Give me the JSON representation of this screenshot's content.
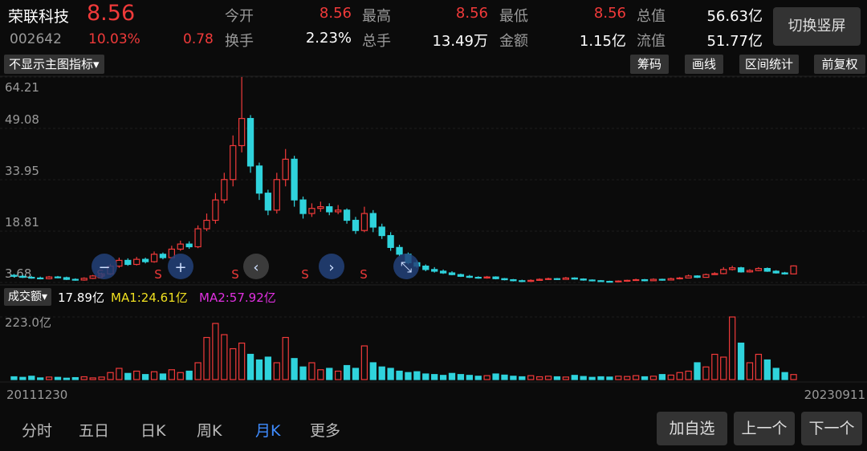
{
  "header": {
    "name": "荣联科技",
    "price": "8.56",
    "code": "002642",
    "change_pct": "10.03%",
    "change": "0.78",
    "stats": [
      {
        "label": "今开",
        "value": "8.56"
      },
      {
        "label": "最高",
        "value": "8.56"
      },
      {
        "label": "最低",
        "value": "8.56"
      },
      {
        "label": "总值",
        "value": "56.63亿"
      },
      {
        "label": "换手",
        "value": "2.23%"
      },
      {
        "label": "总手",
        "value": "13.49万"
      },
      {
        "label": "金额",
        "value": "1.15亿"
      },
      {
        "label": "流值",
        "value": "51.77亿"
      }
    ],
    "rotate_button": "切换竖屏"
  },
  "toolbar": {
    "indicator": "不显示主图指标",
    "buttons": [
      "筹码",
      "画线",
      "区间统计",
      "前复权"
    ]
  },
  "chart_data": {
    "type": "candlestick",
    "open": [
      5.8,
      5.5,
      5.2,
      5.0,
      4.8,
      5.3,
      5.1,
      4.6,
      4.4,
      4.9,
      5.6,
      6.2,
      8.5,
      10.2,
      9.0,
      10.5,
      9.8,
      12.0,
      11.0,
      13.5,
      15.0,
      14.2,
      19.5,
      22.0,
      28.0,
      34.0,
      44.0,
      52.0,
      38.0,
      30.0,
      25.0,
      34.0,
      40.0,
      28.0,
      24.0,
      25.5,
      26.0,
      24.5,
      25.0,
      22.0,
      19.0,
      24.0,
      20.0,
      17.5,
      14.0,
      12.0,
      9.5,
      8.5,
      7.5,
      7.0,
      6.5,
      6.0,
      5.5,
      5.2,
      5.0,
      5.3,
      4.8,
      4.5,
      4.2,
      4.0,
      4.3,
      4.6,
      4.8,
      4.6,
      5.0,
      4.7,
      4.4,
      4.2,
      4.0,
      3.9,
      4.1,
      4.3,
      4.5,
      4.2,
      4.6,
      4.4,
      4.8,
      5.0,
      5.6,
      5.2,
      6.0,
      6.3,
      7.5,
      8.0,
      6.8,
      7.2,
      7.8,
      7.0,
      6.5,
      6.2
    ],
    "high": [
      6.2,
      5.9,
      5.6,
      5.4,
      5.6,
      5.6,
      5.4,
      4.9,
      5.2,
      5.9,
      6.6,
      9.2,
      11.0,
      10.8,
      11.2,
      11.0,
      12.8,
      12.5,
      14.5,
      16.0,
      15.8,
      20.5,
      24.0,
      30.0,
      36.0,
      47.0,
      64.21,
      53.0,
      39.0,
      31.0,
      36.0,
      43.0,
      41.0,
      29.0,
      27.0,
      27.5,
      27.0,
      26.5,
      25.5,
      23.0,
      26.0,
      25.0,
      21.0,
      18.5,
      14.8,
      12.5,
      10.2,
      9.0,
      8.2,
      7.5,
      7.0,
      6.3,
      5.9,
      5.5,
      5.6,
      5.5,
      5.0,
      4.7,
      4.5,
      4.6,
      4.9,
      5.1,
      5.0,
      5.3,
      5.2,
      4.9,
      4.6,
      4.4,
      4.2,
      4.3,
      4.5,
      4.8,
      4.7,
      4.9,
      4.8,
      5.1,
      5.3,
      6.0,
      5.8,
      6.3,
      6.7,
      8.2,
      8.6,
      8.3,
      7.6,
      8.2,
      8.1,
      7.3,
      6.8,
      8.7
    ],
    "low": [
      5.2,
      5.0,
      4.8,
      4.6,
      4.6,
      4.9,
      4.4,
      4.2,
      4.2,
      4.7,
      5.3,
      5.9,
      8.0,
      8.6,
      8.7,
      9.3,
      9.5,
      10.5,
      10.8,
      13.0,
      13.6,
      13.8,
      18.8,
      21.0,
      27.0,
      32.0,
      42.0,
      36.0,
      28.0,
      23.5,
      24.0,
      32.0,
      26.0,
      22.5,
      23.0,
      24.5,
      23.5,
      23.8,
      21.0,
      18.0,
      18.5,
      18.5,
      16.5,
      13.0,
      11.5,
      9.0,
      8.0,
      7.0,
      6.6,
      6.2,
      5.8,
      5.3,
      5.0,
      4.8,
      4.8,
      4.6,
      4.3,
      4.0,
      3.8,
      3.9,
      4.2,
      4.4,
      4.4,
      4.5,
      4.5,
      4.2,
      4.0,
      3.85,
      3.75,
      3.8,
      4.0,
      4.2,
      4.0,
      4.1,
      4.2,
      4.3,
      4.6,
      4.9,
      5.0,
      5.1,
      5.9,
      6.1,
      7.2,
      6.6,
      6.6,
      7.0,
      6.8,
      6.3,
      6.0,
      6.1
    ],
    "close": [
      5.5,
      5.2,
      5.0,
      4.8,
      5.3,
      5.1,
      4.6,
      4.4,
      4.9,
      5.6,
      6.2,
      8.5,
      10.2,
      9.0,
      10.5,
      9.8,
      12.0,
      11.0,
      13.5,
      15.0,
      14.2,
      19.5,
      22.0,
      28.0,
      34.0,
      44.0,
      52.0,
      38.0,
      30.0,
      25.0,
      34.0,
      40.0,
      28.0,
      24.0,
      25.5,
      26.0,
      24.5,
      25.0,
      22.0,
      19.0,
      24.0,
      20.0,
      17.5,
      14.0,
      12.0,
      9.5,
      8.5,
      7.5,
      7.0,
      6.5,
      6.0,
      5.5,
      5.2,
      5.0,
      5.3,
      4.8,
      4.5,
      4.2,
      4.0,
      4.3,
      4.6,
      4.8,
      4.6,
      5.0,
      4.7,
      4.4,
      4.2,
      4.0,
      3.9,
      4.1,
      4.3,
      4.5,
      4.2,
      4.6,
      4.4,
      4.8,
      5.0,
      5.6,
      5.2,
      6.0,
      6.3,
      7.5,
      8.0,
      6.8,
      7.2,
      7.8,
      7.0,
      6.5,
      6.2,
      8.56
    ],
    "volume": [
      10,
      8,
      12,
      6,
      9,
      8,
      5,
      7,
      10,
      6,
      9,
      25,
      40,
      22,
      30,
      18,
      28,
      20,
      35,
      25,
      30,
      60,
      150,
      200,
      160,
      110,
      130,
      90,
      70,
      80,
      60,
      150,
      75,
      45,
      60,
      35,
      40,
      30,
      50,
      40,
      120,
      60,
      45,
      40,
      30,
      25,
      28,
      20,
      18,
      15,
      22,
      18,
      15,
      12,
      14,
      20,
      16,
      12,
      10,
      14,
      10,
      12,
      10,
      9,
      15,
      11,
      8,
      10,
      9,
      12,
      11,
      14,
      10,
      12,
      18,
      16,
      25,
      30,
      60,
      45,
      90,
      80,
      223,
      130,
      60,
      90,
      70,
      40,
      25,
      18
    ],
    "ylim": [
      3.68,
      64.21
    ],
    "yticks": [
      64.21,
      49.08,
      33.95,
      18.81,
      3.68
    ],
    "volume_ylim": [
      0,
      223
    ],
    "volume_yticks": [
      {
        "value": 223,
        "label": "223.0亿"
      }
    ],
    "up_color": "#f03a3a",
    "down_color": "#2fd3dc",
    "x_start_label": "20111230",
    "x_end_label": "20230911"
  },
  "volume_legend": {
    "name": "成交额",
    "current": "17.89亿",
    "ma1": "MA1:24.61亿",
    "ma2": "MA2:57.92亿"
  },
  "nav": {
    "tabs": [
      "分时",
      "五日",
      "日K",
      "周K",
      "月K",
      "更多"
    ],
    "buttons": [
      "加自选",
      "上一个",
      "下一个"
    ]
  }
}
